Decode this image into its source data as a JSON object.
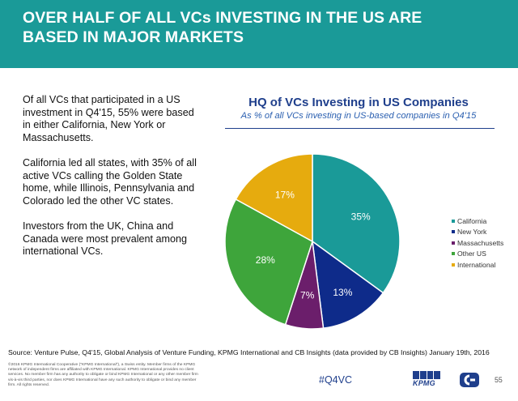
{
  "header": {
    "title_line1": "OVER HALF OF ALL VCs INVESTING IN THE US ARE",
    "title_line2": "BASED IN MAJOR MARKETS"
  },
  "body_text": [
    "Of all VCs that participated in a US investment in Q4'15, 55% were based in either California, New York or Massachusetts.",
    "California led all states, with 35% of all active VCs calling the Golden State home, while Illinois, Pennsylvania and Colorado led the other VC states.",
    "Investors from the UK, China and Canada were most prevalent among international VCs."
  ],
  "chart_data": {
    "type": "pie",
    "title": "HQ of VCs Investing in US Companies",
    "subtitle": "As % of all VCs investing in US-based companies in Q4'15",
    "categories": [
      "California",
      "New York",
      "Massachusetts",
      "Other US",
      "International"
    ],
    "values": [
      35,
      13,
      7,
      28,
      17
    ],
    "data_labels": [
      "35%",
      "13%",
      "7%",
      "28%",
      "17%"
    ],
    "colors": [
      "#1a9a98",
      "#0e2b8a",
      "#6b1e6b",
      "#3ea53b",
      "#e6ab0e"
    ],
    "legend_position": "right"
  },
  "footer": {
    "source": "Source: Venture Pulse, Q4'15, Global Analysis of Venture Funding, KPMG International and CB Insights (data provided by CB Insights) January 19th, 2016",
    "disclaimer": "©2016 KPMG International Cooperative (\"KPMG International\"), a Swiss entity. Member firms of the KPMG network of independent firms are affiliated with KPMG International. KPMG International provides no client services. No member firm has any authority to obligate or bind KPMG International or any other member firm vis-à-vis third parties, nor does KPMG International have any such authority to obligate or bind any member firm. All rights reserved.",
    "hashtag": "#Q4VC",
    "kpmg_logo_text": "KPMG",
    "page_number": "55"
  }
}
